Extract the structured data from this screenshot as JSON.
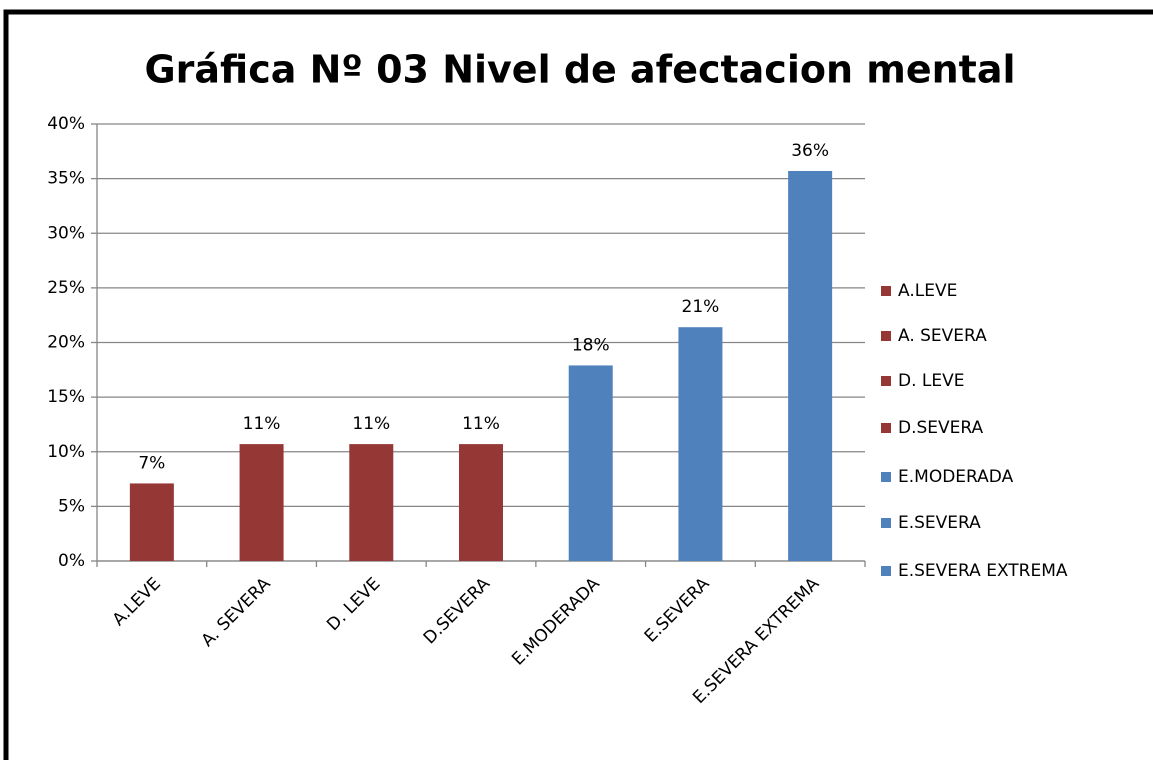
{
  "chart_data": {
    "type": "bar",
    "title": "Gráfica Nº 03 Nivel de afectacion mental",
    "categories": [
      "A.LEVE",
      "A. SEVERA",
      "D. LEVE",
      "D.SEVERA",
      "E.MODERADA",
      "E.SEVERA",
      "E.SEVERA EXTREMA"
    ],
    "values": [
      7.1,
      10.7,
      10.7,
      10.7,
      17.9,
      21.4,
      35.7
    ],
    "value_labels": [
      "7%",
      "11%",
      "11%",
      "11%",
      "18%",
      "21%",
      "36%"
    ],
    "colors": [
      "#953735",
      "#953735",
      "#953735",
      "#953735",
      "#4f81bd",
      "#4f81bd",
      "#4f81bd"
    ],
    "ylim": [
      0,
      40
    ],
    "yticks": [
      {
        "value": 0,
        "label": "0%"
      },
      {
        "value": 5,
        "label": "5%"
      },
      {
        "value": 10,
        "label": "10%"
      },
      {
        "value": 15,
        "label": "15%"
      },
      {
        "value": 20,
        "label": "20%"
      },
      {
        "value": 25,
        "label": "25%"
      },
      {
        "value": 30,
        "label": "30%"
      },
      {
        "value": 35,
        "label": "35%"
      },
      {
        "value": 40,
        "label": "40%"
      }
    ],
    "grid": true,
    "legend": "right"
  }
}
